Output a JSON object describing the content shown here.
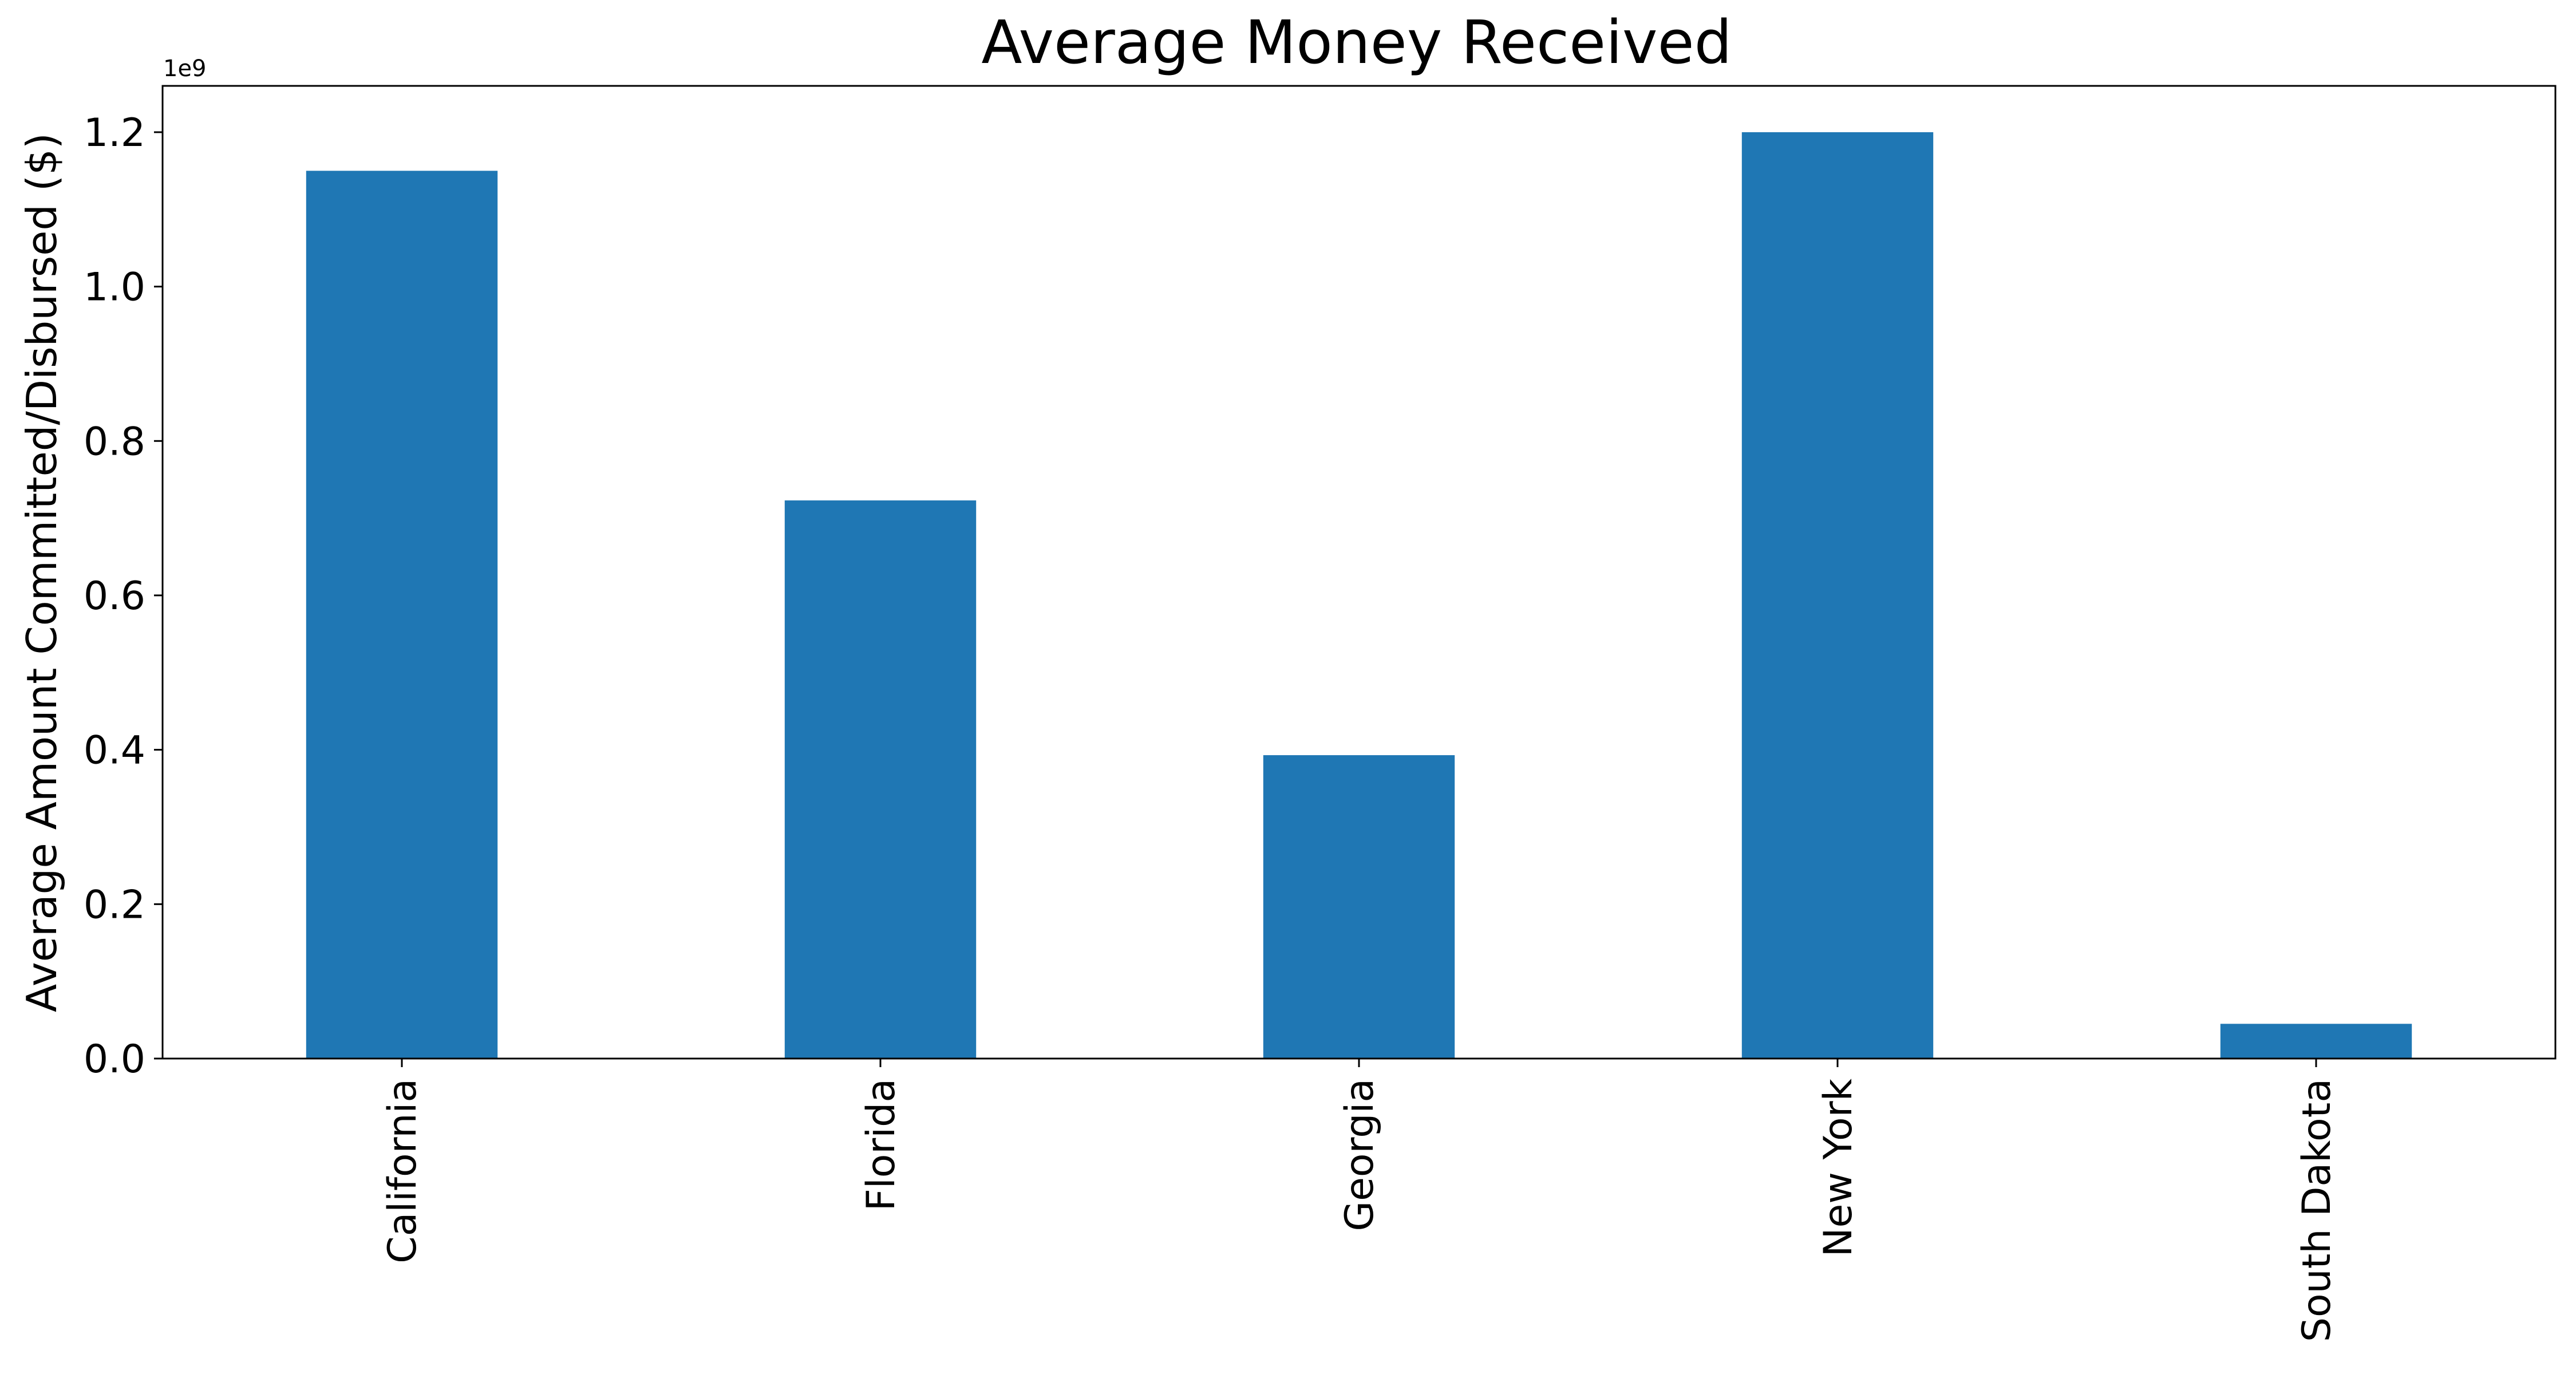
{
  "chart_data": {
    "type": "bar",
    "title": "Average Money Received",
    "xlabel": "",
    "ylabel": "Average Amount Committed/Disbursed ($)",
    "offset_label": "1e9",
    "categories": [
      "California",
      "Florida",
      "Georgia",
      "New York",
      "South Dakota"
    ],
    "values": [
      1150000000,
      723000000,
      393000000,
      1200000000,
      45000000
    ],
    "ylim": [
      0,
      1260000000
    ],
    "yticks": [
      0,
      200000000,
      400000000,
      600000000,
      800000000,
      1000000000,
      1200000000
    ],
    "ytick_labels": [
      "0.0",
      "0.2",
      "0.4",
      "0.6",
      "0.8",
      "1.0",
      "1.2"
    ],
    "grid": false,
    "legend": "none",
    "bar_color": "#1f77b4"
  }
}
